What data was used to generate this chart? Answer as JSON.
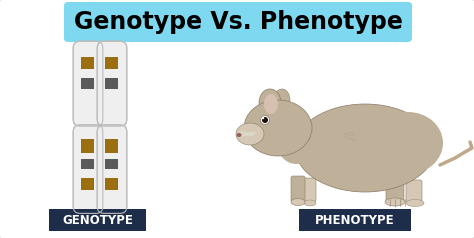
{
  "title": "Genotype Vs. Phenotype",
  "title_bg_color": "#7DD8F0",
  "title_fontsize": 17,
  "title_fontweight": "bold",
  "fig_bg_color": "#FFFFFF",
  "label_left": "GENOTYPE",
  "label_right": "PHENOTYPE",
  "label_bg_color": "#1e2d4a",
  "label_text_color": "#FFFFFF",
  "label_fontsize": 8.5,
  "border_color": "#cccccc",
  "chrom_fill": "#EFEFEF",
  "chrom_grad_light": "#F8F8F8",
  "chrom_outline": "#BBBBBB",
  "chrom_brown": "#9B6E10",
  "chrom_gray": "#5A5A5A",
  "mouse_body": "#BFB09A",
  "mouse_dark": "#8C7B65",
  "mouse_light": "#D5C9B5"
}
